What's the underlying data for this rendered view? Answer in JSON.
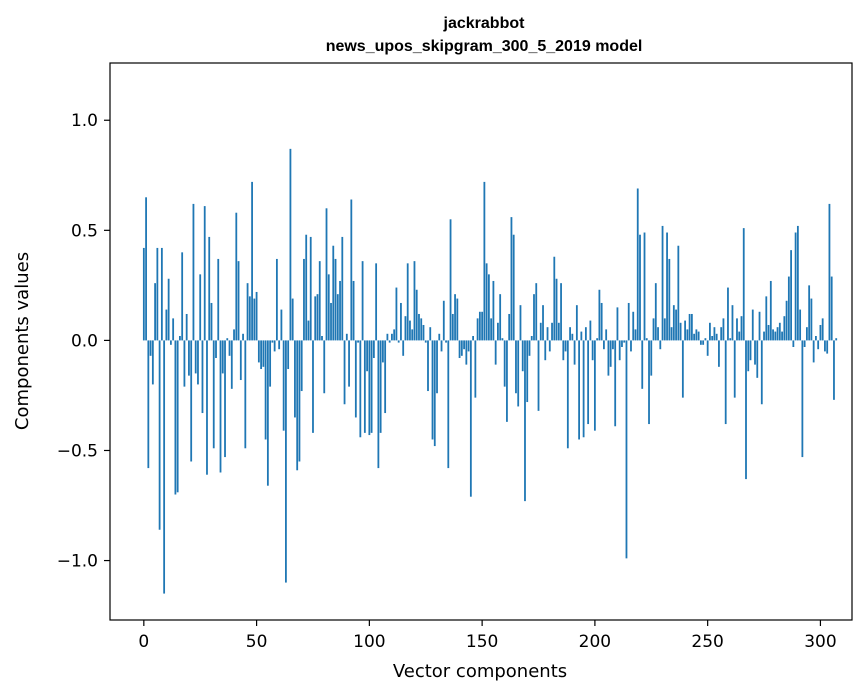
{
  "chart_data": {
    "type": "bar",
    "title_line1": "jackrabbot",
    "title_line2": "news_upos_skipgram_300_5_2019 model",
    "xlabel": "Vector components",
    "ylabel": "Components values",
    "xlim": [
      -15,
      314
    ],
    "ylim": [
      -1.27,
      1.26
    ],
    "xticks": [
      0,
      50,
      100,
      150,
      200,
      250,
      300
    ],
    "xtick_labels": [
      "0",
      "50",
      "100",
      "150",
      "200",
      "250",
      "300"
    ],
    "yticks": [
      -1.0,
      -0.5,
      0.0,
      0.5,
      1.0
    ],
    "ytick_labels": [
      "−1.0",
      "−0.5",
      "0.0",
      "0.5",
      "1.0"
    ],
    "grid": false,
    "color": "#1f77b4",
    "values": [
      0.42,
      0.65,
      -0.58,
      -0.07,
      -0.2,
      0.26,
      0.42,
      -0.86,
      0.42,
      -1.15,
      0.14,
      0.28,
      -0.02,
      0.1,
      -0.7,
      -0.69,
      0.02,
      0.4,
      -0.21,
      0.12,
      -0.16,
      -0.55,
      0.62,
      -0.15,
      -0.2,
      0.3,
      -0.33,
      0.61,
      -0.61,
      0.47,
      0.17,
      -0.49,
      -0.08,
      0.37,
      -0.6,
      -0.15,
      -0.53,
      0.01,
      -0.07,
      -0.22,
      0.05,
      0.58,
      0.36,
      -0.18,
      0.03,
      -0.49,
      0.26,
      0.2,
      0.72,
      0.19,
      0.22,
      -0.1,
      -0.13,
      -0.12,
      -0.45,
      -0.66,
      -0.21,
      -0.01,
      -0.05,
      0.37,
      -0.04,
      0.14,
      -0.41,
      -1.1,
      -0.13,
      0.87,
      0.19,
      -0.35,
      -0.59,
      -0.55,
      -0.23,
      0.37,
      0.48,
      0.09,
      0.47,
      -0.42,
      0.2,
      0.21,
      0.36,
      0.02,
      -0.24,
      0.6,
      0.3,
      0.17,
      0.43,
      0.37,
      0.21,
      0.27,
      0.47,
      -0.29,
      0.03,
      -0.21,
      0.64,
      0.27,
      -0.35,
      -0.01,
      -0.44,
      0.36,
      -0.42,
      -0.14,
      -0.43,
      -0.42,
      -0.08,
      0.35,
      -0.58,
      -0.42,
      -0.1,
      -0.33,
      0.03,
      -0.01,
      0.03,
      0.05,
      0.24,
      -0.01,
      0.17,
      -0.07,
      0.11,
      0.35,
      0.09,
      0.05,
      0.36,
      0.23,
      0.12,
      0.1,
      0.07,
      -0.01,
      -0.23,
      0.06,
      -0.45,
      -0.48,
      -0.24,
      0.03,
      -0.05,
      0.18,
      -0.01,
      -0.58,
      0.55,
      0.12,
      0.21,
      0.19,
      -0.08,
      -0.07,
      -0.04,
      -0.11,
      -0.05,
      -0.71,
      0.02,
      -0.26,
      0.1,
      0.13,
      0.13,
      0.72,
      0.35,
      0.3,
      0.1,
      0.27,
      -0.11,
      0.08,
      0.21,
      0.01,
      -0.21,
      -0.37,
      0.12,
      0.56,
      0.48,
      -0.24,
      -0.3,
      0.16,
      -0.14,
      -0.73,
      -0.28,
      -0.07,
      0.02,
      0.21,
      0.26,
      -0.32,
      0.08,
      0.16,
      -0.09,
      0.06,
      -0.05,
      0.08,
      0.38,
      0.28,
      0.08,
      0.26,
      -0.09,
      -0.05,
      -0.49,
      0.06,
      0.03,
      -0.11,
      0.16,
      -0.45,
      0.04,
      -0.44,
      0.06,
      -0.38,
      0.09,
      -0.09,
      -0.41,
      0.01,
      0.23,
      0.17,
      -0.04,
      0.05,
      -0.16,
      -0.12,
      -0.04,
      -0.39,
      0.15,
      -0.09,
      -0.03,
      -0.01,
      -0.99,
      0.17,
      -0.05,
      0.13,
      0.05,
      0.69,
      0.48,
      -0.22,
      0.49,
      0.01,
      -0.38,
      -0.16,
      0.1,
      0.26,
      0.06,
      -0.04,
      0.52,
      0.1,
      0.49,
      0.37,
      0.06,
      0.16,
      0.14,
      0.43,
      0.08,
      -0.26,
      0.09,
      0.05,
      0.12,
      0.12,
      0.03,
      0.05,
      0.04,
      -0.02,
      -0.02,
      0.01,
      -0.07,
      0.08,
      0.02,
      0.06,
      0.03,
      -0.12,
      0.06,
      0.1,
      -0.38,
      0.24,
      0.01,
      0.16,
      -0.26,
      0.1,
      0.04,
      0.11,
      0.51,
      -0.63,
      -0.14,
      -0.09,
      0.14,
      -0.11,
      -0.17,
      0.13,
      -0.29,
      0.04,
      0.2,
      0.07,
      0.27,
      0.05,
      0.04,
      0.06,
      0.08,
      0.04,
      0.11,
      0.18,
      0.29,
      0.41,
      -0.03,
      0.49,
      0.52,
      0.14,
      -0.53,
      -0.03,
      0.06,
      0.25,
      0.19,
      -0.1,
      0.02,
      -0.04,
      0.07,
      0.1,
      -0.05,
      -0.06,
      0.62,
      0.29,
      -0.27,
      0.01
    ]
  }
}
